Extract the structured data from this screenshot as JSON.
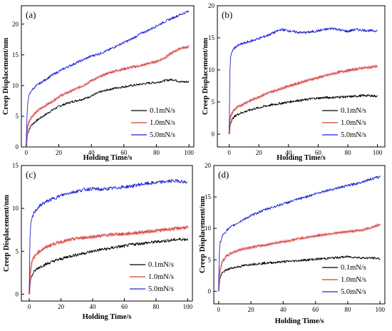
{
  "chart_data": [
    {
      "type": "line",
      "panel": "(a)",
      "xlabel": "Holding Time/s",
      "ylabel": "Creep Displacement/nm",
      "xlim": [
        -3,
        103
      ],
      "ylim": [
        0,
        23
      ],
      "xticks": [
        "0",
        "20",
        "40",
        "60",
        "80",
        "100"
      ],
      "yticks": [
        "0",
        "5",
        "10",
        "15",
        "20"
      ],
      "legend_position": "bottom-right",
      "series": [
        {
          "name": "0.1mN/s",
          "color": "#000000",
          "x": [
            0,
            0.5,
            1,
            2,
            3,
            5,
            8,
            12,
            16,
            20,
            25,
            30,
            35,
            40,
            45,
            50,
            55,
            60,
            65,
            70,
            75,
            80,
            85,
            90,
            95,
            100
          ],
          "y": [
            0,
            1.5,
            2.3,
            3.0,
            3.5,
            4.0,
            4.6,
            5.3,
            6.0,
            6.6,
            7.1,
            7.5,
            7.8,
            8.3,
            8.9,
            9.3,
            9.6,
            9.8,
            10.0,
            10.2,
            10.4,
            10.5,
            10.8,
            11.0,
            10.6,
            10.6
          ]
        },
        {
          "name": "1.0mN/s",
          "color": "#d0401c",
          "x": [
            0,
            0.5,
            1,
            2,
            3,
            5,
            8,
            12,
            16,
            20,
            25,
            30,
            35,
            40,
            45,
            50,
            55,
            60,
            65,
            70,
            75,
            80,
            85,
            90,
            95,
            100
          ],
          "y": [
            0,
            2.5,
            3.5,
            4.3,
            4.8,
            5.4,
            6.1,
            6.8,
            7.4,
            8.2,
            8.8,
            9.4,
            10.0,
            10.8,
            11.4,
            12.0,
            12.4,
            12.7,
            13.0,
            13.2,
            13.6,
            13.9,
            14.5,
            15.4,
            16.1,
            16.3
          ]
        },
        {
          "name": "5.0mN/s",
          "color": "#1f23d6",
          "x": [
            0,
            0.3,
            0.6,
            1,
            2,
            3,
            5,
            8,
            12,
            16,
            20,
            25,
            30,
            35,
            40,
            45,
            50,
            55,
            60,
            65,
            70,
            75,
            80,
            85,
            90,
            95,
            100
          ],
          "y": [
            0,
            3.5,
            6.0,
            7.5,
            8.6,
            9.1,
            9.7,
            10.3,
            11.0,
            11.7,
            12.3,
            13.0,
            13.6,
            14.2,
            14.8,
            15.2,
            15.7,
            16.4,
            17.0,
            17.6,
            18.4,
            19.0,
            19.7,
            20.4,
            21.0,
            21.6,
            22.1
          ]
        }
      ]
    },
    {
      "type": "line",
      "panel": "(b)",
      "xlabel": "Holding Time/s",
      "ylabel": "Creep Displacement/nm",
      "xlim": [
        -8,
        105
      ],
      "ylim": [
        -2,
        20
      ],
      "xticks": [
        "0",
        "20",
        "40",
        "60",
        "80",
        "100"
      ],
      "yticks": [
        "0",
        "5",
        "10",
        "15",
        "20"
      ],
      "legend_position": "bottom-right",
      "series": [
        {
          "name": "0.1mN/s",
          "color": "#000000",
          "x": [
            0,
            0.5,
            1,
            2,
            3,
            5,
            8,
            12,
            16,
            20,
            25,
            30,
            35,
            40,
            45,
            50,
            55,
            60,
            65,
            70,
            75,
            80,
            85,
            90,
            95,
            100
          ],
          "y": [
            0,
            1.2,
            1.8,
            2.3,
            2.6,
            3.0,
            3.3,
            3.6,
            3.9,
            4.1,
            4.4,
            4.6,
            4.8,
            5.0,
            5.2,
            5.3,
            5.5,
            5.6,
            5.7,
            5.7,
            5.8,
            5.8,
            5.9,
            6.0,
            6.0,
            5.9
          ]
        },
        {
          "name": "1.0mN/s",
          "color": "#d0401c",
          "x": [
            0,
            0.5,
            1,
            2,
            3,
            5,
            8,
            12,
            16,
            20,
            25,
            30,
            35,
            40,
            45,
            50,
            55,
            60,
            65,
            70,
            75,
            80,
            85,
            90,
            95,
            100
          ],
          "y": [
            0,
            2.0,
            2.8,
            3.3,
            3.7,
            4.1,
            4.5,
            5.0,
            5.4,
            5.8,
            6.3,
            6.7,
            7.1,
            7.5,
            7.8,
            8.2,
            8.5,
            8.8,
            9.1,
            9.4,
            9.7,
            9.9,
            10.1,
            10.3,
            10.4,
            10.6
          ]
        },
        {
          "name": "5.0mN/s",
          "color": "#1f23d6",
          "x": [
            0,
            0.2,
            0.5,
            1,
            2,
            3,
            5,
            8,
            12,
            16,
            20,
            25,
            30,
            35,
            40,
            45,
            50,
            55,
            60,
            65,
            70,
            75,
            80,
            85,
            90,
            95,
            100
          ],
          "y": [
            0,
            5.0,
            10.0,
            12.0,
            12.9,
            13.3,
            13.7,
            14.0,
            14.3,
            14.6,
            14.9,
            15.3,
            15.8,
            16.3,
            16.1,
            15.9,
            15.8,
            15.9,
            16.1,
            16.3,
            16.5,
            16.2,
            16.0,
            16.3,
            16.2,
            16.1,
            16.1
          ]
        }
      ]
    },
    {
      "type": "line",
      "panel": "(c)",
      "xlabel": "Holding Time/s",
      "ylabel": "Creep Displacement/nm",
      "xlim": [
        -5,
        103
      ],
      "ylim": [
        -0.8,
        15
      ],
      "xticks": [
        "0",
        "20",
        "40",
        "60",
        "80",
        "100"
      ],
      "yticks": [
        "0",
        "5",
        "10",
        "15"
      ],
      "legend_position": "bottom-right",
      "series": [
        {
          "name": "0.1mN/s",
          "color": "#000000",
          "x": [
            0,
            0.5,
            1,
            2,
            3,
            5,
            8,
            12,
            16,
            20,
            25,
            30,
            35,
            40,
            45,
            50,
            55,
            60,
            65,
            70,
            75,
            80,
            85,
            90,
            95,
            100
          ],
          "y": [
            0,
            1.2,
            1.8,
            2.3,
            2.6,
            3.0,
            3.3,
            3.6,
            3.9,
            4.1,
            4.4,
            4.6,
            4.8,
            5.0,
            5.2,
            5.3,
            5.5,
            5.6,
            5.8,
            5.9,
            6.0,
            6.1,
            6.2,
            6.3,
            6.4,
            6.4
          ]
        },
        {
          "name": "1.0mN/s",
          "color": "#d0401c",
          "x": [
            0,
            0.5,
            1,
            2,
            3,
            5,
            8,
            12,
            16,
            20,
            25,
            30,
            35,
            40,
            45,
            50,
            55,
            60,
            65,
            70,
            75,
            80,
            85,
            90,
            95,
            100
          ],
          "y": [
            0,
            2.2,
            3.2,
            3.9,
            4.3,
            4.8,
            5.2,
            5.6,
            5.9,
            6.1,
            6.3,
            6.5,
            6.6,
            6.7,
            6.8,
            6.9,
            7.0,
            7.0,
            7.1,
            7.2,
            7.3,
            7.4,
            7.5,
            7.6,
            7.7,
            7.8
          ]
        },
        {
          "name": "5.0mN/s",
          "color": "#1f23d6",
          "x": [
            0,
            0.2,
            0.5,
            1,
            2,
            3,
            5,
            8,
            12,
            16,
            20,
            25,
            30,
            35,
            40,
            45,
            50,
            55,
            60,
            65,
            70,
            75,
            80,
            85,
            90,
            95,
            100
          ],
          "y": [
            0,
            4.0,
            6.8,
            8.2,
            9.0,
            9.5,
            10.0,
            10.5,
            10.9,
            11.2,
            11.5,
            11.8,
            12.0,
            12.2,
            12.3,
            12.2,
            12.3,
            12.4,
            12.5,
            12.6,
            12.8,
            12.9,
            13.0,
            13.1,
            13.2,
            13.2,
            13.0
          ]
        }
      ]
    },
    {
      "type": "line",
      "panel": "(d)",
      "xlabel": "Holding Time/s",
      "ylabel": "Creep Displacement/nm",
      "xlim": [
        -3,
        103
      ],
      "ylim": [
        -2,
        20
      ],
      "xticks": [
        "0",
        "20",
        "40",
        "60",
        "80",
        "100"
      ],
      "yticks": [
        "0",
        "5",
        "10",
        "15",
        "20"
      ],
      "legend_position": "bottom-right",
      "series": [
        {
          "name": "0.1mN/s",
          "color": "#000000",
          "x": [
            0,
            0.5,
            1,
            2,
            3,
            5,
            8,
            12,
            16,
            20,
            25,
            30,
            35,
            40,
            45,
            50,
            55,
            60,
            65,
            70,
            75,
            80,
            85,
            90,
            95,
            100
          ],
          "y": [
            0,
            1.5,
            2.2,
            2.8,
            3.1,
            3.4,
            3.7,
            3.9,
            4.1,
            4.3,
            4.4,
            4.5,
            4.6,
            4.7,
            4.8,
            4.9,
            5.0,
            5.1,
            5.2,
            5.3,
            5.4,
            5.5,
            5.4,
            5.3,
            5.3,
            5.2
          ]
        },
        {
          "name": "1.0mN/s",
          "color": "#d0401c",
          "x": [
            0,
            0.5,
            1,
            2,
            3,
            5,
            8,
            12,
            16,
            20,
            25,
            30,
            35,
            40,
            45,
            50,
            55,
            60,
            65,
            70,
            75,
            80,
            85,
            90,
            95,
            100
          ],
          "y": [
            0,
            2.5,
            3.6,
            4.5,
            5.0,
            5.6,
            6.1,
            6.5,
            6.8,
            7.0,
            7.2,
            7.4,
            7.7,
            7.9,
            8.1,
            8.4,
            8.6,
            8.8,
            9.0,
            9.2,
            9.3,
            9.5,
            9.6,
            9.8,
            10.2,
            10.6
          ]
        },
        {
          "name": "5.0mN/s",
          "color": "#1f23d6",
          "x": [
            0,
            0.2,
            0.5,
            1,
            2,
            3,
            5,
            8,
            12,
            16,
            20,
            25,
            30,
            35,
            40,
            45,
            50,
            55,
            60,
            65,
            70,
            75,
            80,
            85,
            90,
            95,
            100
          ],
          "y": [
            0,
            4.0,
            6.5,
            7.8,
            8.6,
            9.1,
            9.7,
            10.3,
            10.9,
            11.5,
            12.0,
            12.6,
            13.1,
            13.5,
            13.9,
            14.3,
            14.7,
            15.1,
            15.5,
            15.9,
            16.2,
            16.5,
            16.8,
            17.1,
            17.5,
            17.9,
            18.2
          ]
        }
      ]
    }
  ]
}
